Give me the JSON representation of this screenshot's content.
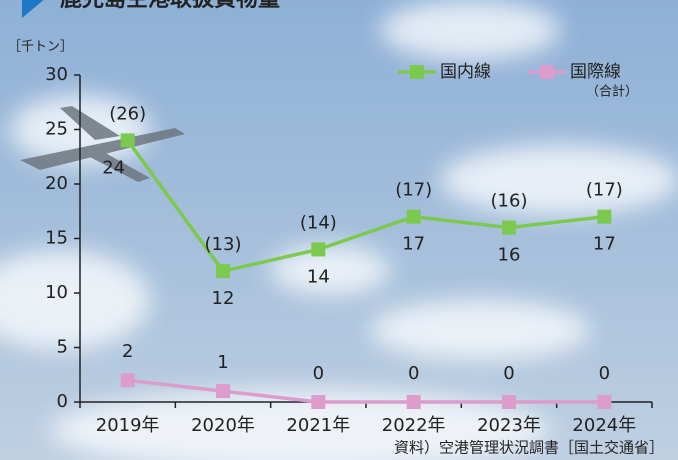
{
  "chart_data": {
    "type": "line",
    "title": "鹿児島空港取扱貨物量",
    "y_unit": "［千トン］",
    "categories": [
      "2019年",
      "2020年",
      "2021年",
      "2022年",
      "2023年",
      "2024年"
    ],
    "series": [
      {
        "name": "国内線",
        "color": "#7cc94f",
        "values": [
          24,
          12,
          14,
          17,
          16,
          17
        ]
      },
      {
        "name": "国際線",
        "color": "#dc9ccc",
        "values": [
          2,
          1,
          0,
          0,
          0,
          0
        ]
      }
    ],
    "legend_note": "（合計）",
    "total_labels": [
      "(26)",
      "(13)",
      "(14)",
      "(17)",
      "(16)",
      "(17)"
    ],
    "ylim": [
      0,
      30
    ],
    "yticks": [
      0,
      5,
      10,
      15,
      20,
      25,
      30
    ],
    "source": "資料）空港管理状況調書［国土交通省］"
  }
}
